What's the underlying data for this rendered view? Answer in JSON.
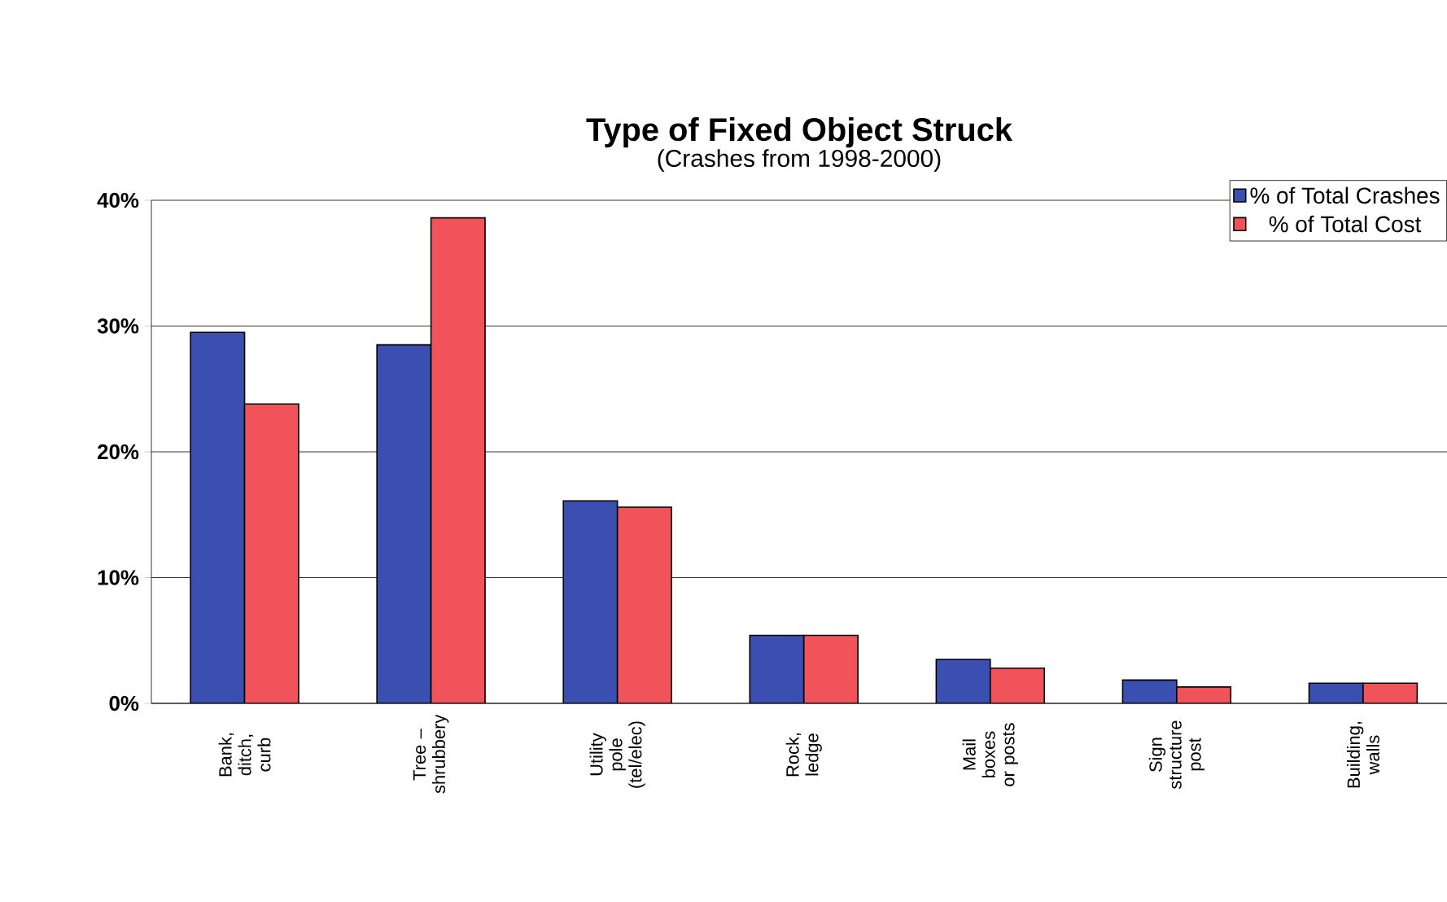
{
  "chart_data": {
    "type": "bar",
    "title": "Type of Fixed Object Struck",
    "subtitle": "(Crashes from 1998-2000)",
    "categories": [
      "Bank, ditch, curb",
      "Tree – shrubbery",
      "Utility pole (tel/elec)",
      "Rock, ledge",
      "Mail boxes or posts",
      "Sign structure post",
      "Building, walls"
    ],
    "series": [
      {
        "name": "% of Total Crashes",
        "color": "#3a4fb0",
        "values": [
          29.5,
          28.5,
          16.1,
          5.4,
          3.5,
          1.85,
          1.6
        ]
      },
      {
        "name": "% of Total Cost",
        "color": "#f0545a",
        "values": [
          23.8,
          38.6,
          15.6,
          5.4,
          2.8,
          1.3,
          1.6
        ]
      }
    ],
    "ylim": [
      0,
      40
    ],
    "yticks": [
      {
        "value": 0,
        "label": "0%"
      },
      {
        "value": 10,
        "label": "10%"
      },
      {
        "value": 20,
        "label": "20%"
      },
      {
        "value": 30,
        "label": "30%"
      },
      {
        "value": 40,
        "label": "40%"
      }
    ],
    "grid": "y",
    "legend": "top right"
  }
}
